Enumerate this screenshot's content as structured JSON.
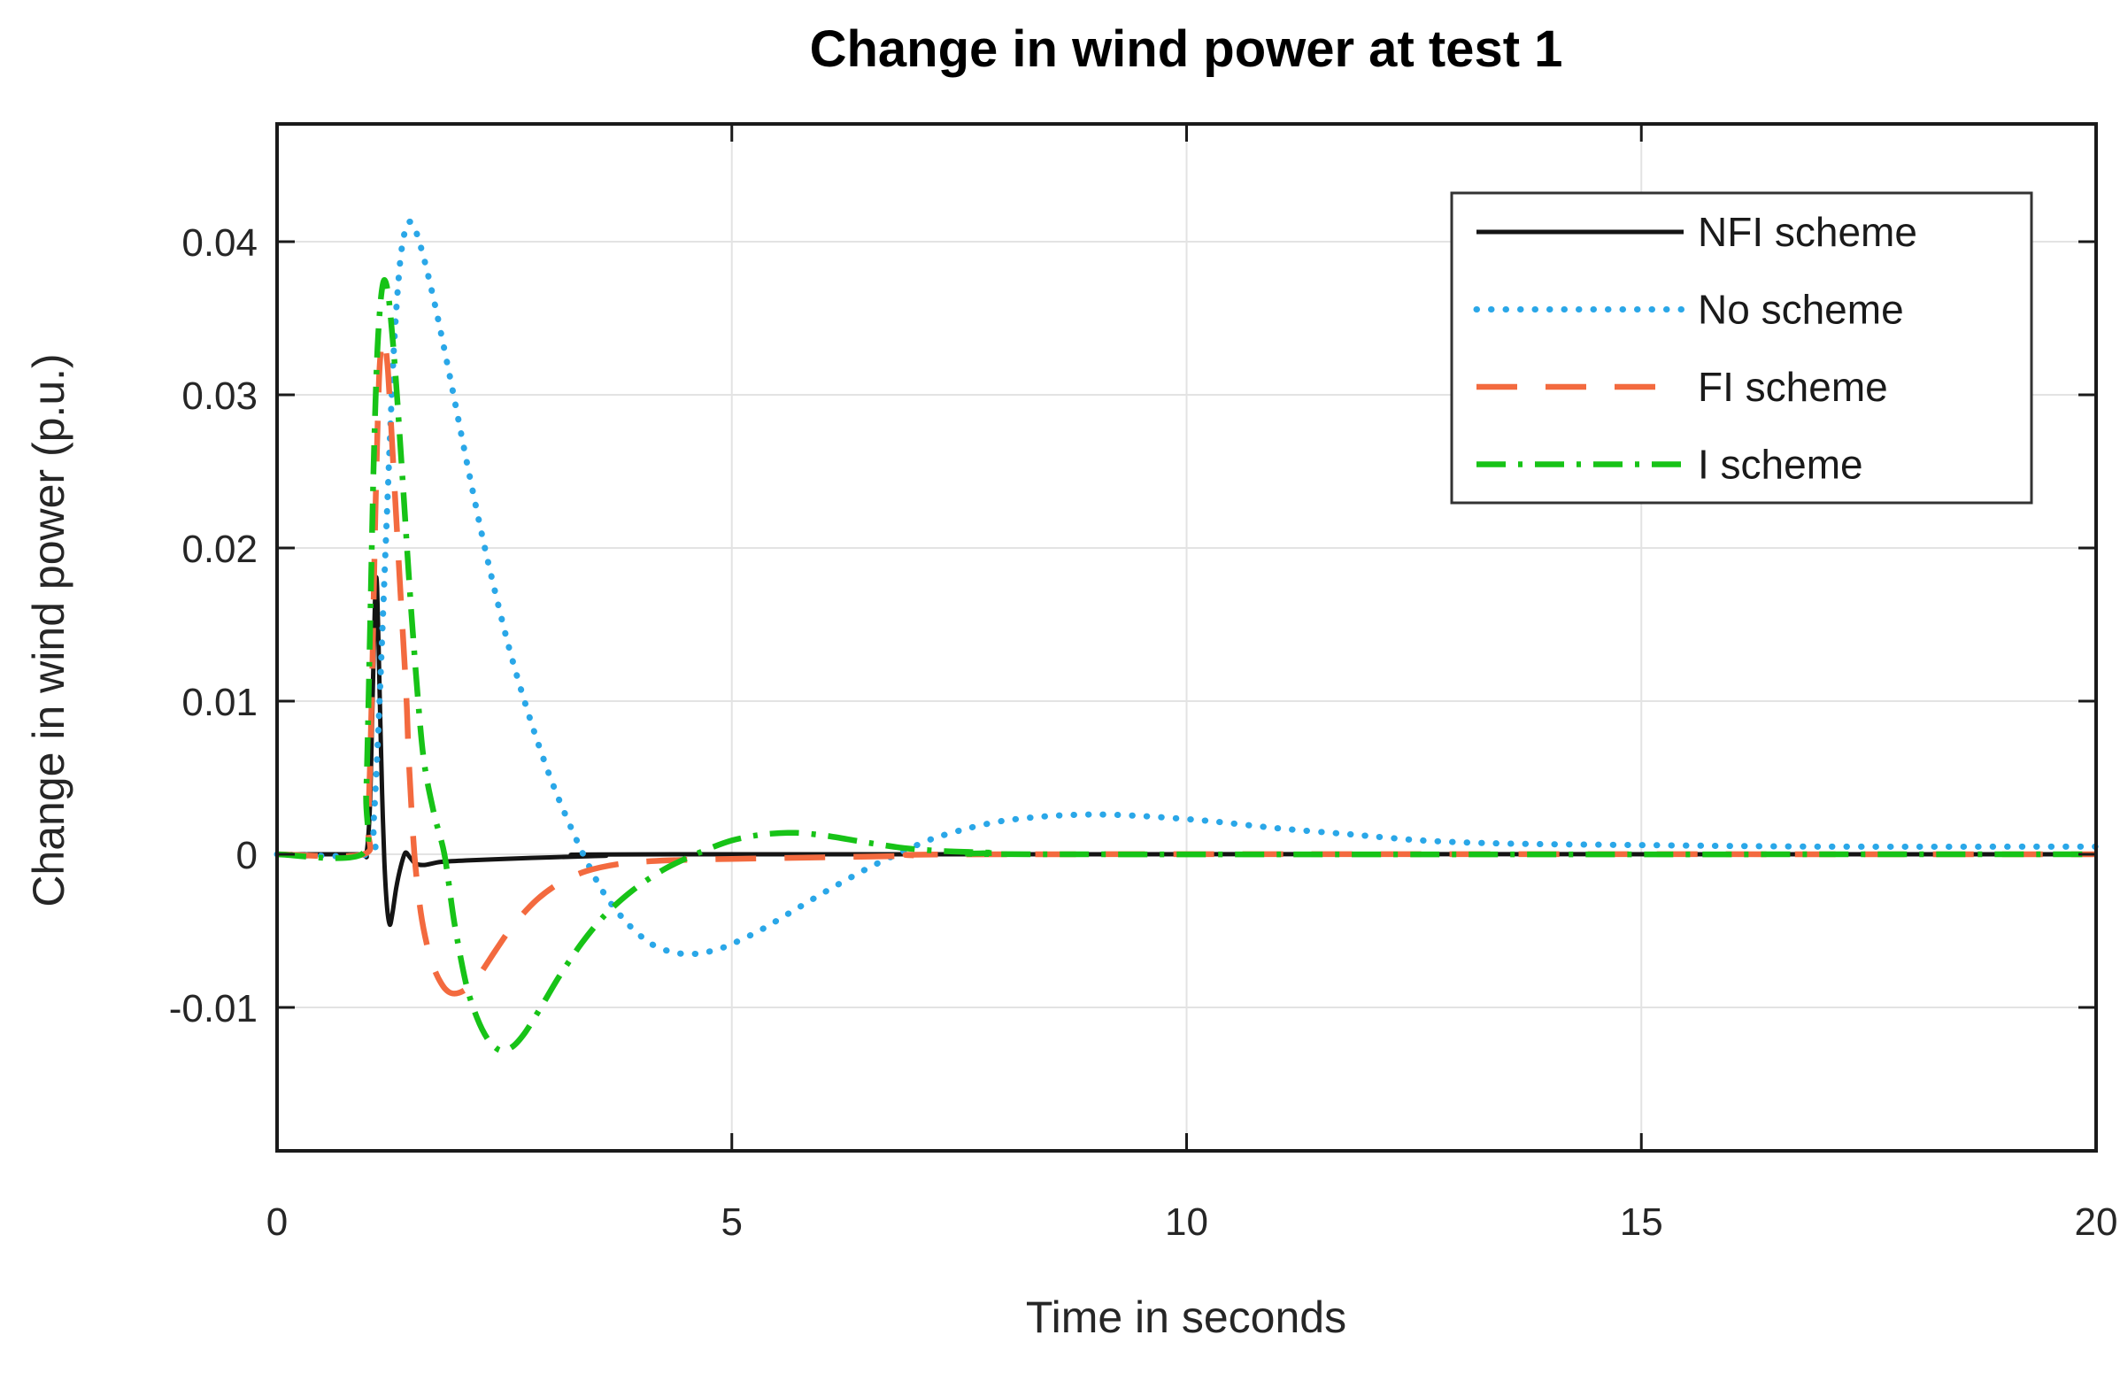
{
  "chart_data": {
    "type": "line",
    "title": "Change in wind power at test 1",
    "xlabel": "Time in seconds",
    "ylabel": "Change in wind power (p.u.)",
    "xlim": [
      0,
      20
    ],
    "ylim": [
      -0.0194,
      0.0477
    ],
    "xticks": [
      0,
      5,
      10,
      15,
      20
    ],
    "xtick_labels": [
      "0",
      "5",
      "10",
      "15",
      "20"
    ],
    "yticks": [
      -0.01,
      0,
      0.01,
      0.02,
      0.03,
      0.04
    ],
    "ytick_labels": [
      "-0.01",
      "0",
      "0.01",
      "0.02",
      "0.03",
      "0.04"
    ],
    "grid": true,
    "legend_position": "top-right",
    "colors": {
      "background": "#ffffff",
      "frame": "#1a1a1a",
      "grid": "#e3e3e3",
      "tick_label": "#262626",
      "title": "#000000"
    },
    "series": [
      {
        "name": "nfi-scheme",
        "label": "NFI scheme",
        "color": "#141414",
        "style": "solid",
        "width": 5,
        "points": [
          [
            0,
            0
          ],
          [
            0.9,
            0
          ],
          [
            0.98,
            0
          ],
          [
            1.02,
            0.003
          ],
          [
            1.05,
            0.01
          ],
          [
            1.08,
            0.0172
          ],
          [
            1.1,
            0.0174
          ],
          [
            1.13,
            0.01
          ],
          [
            1.155,
            0.004
          ],
          [
            1.18,
            -0.0005
          ],
          [
            1.21,
            -0.0035
          ],
          [
            1.24,
            -0.0046
          ],
          [
            1.27,
            -0.0038
          ],
          [
            1.31,
            -0.0022
          ],
          [
            1.36,
            -0.0008
          ],
          [
            1.41,
            0.0001
          ],
          [
            1.46,
            -0.0002
          ],
          [
            1.52,
            -0.0006
          ],
          [
            1.62,
            -0.0007
          ],
          [
            1.8,
            -0.0005
          ],
          [
            2.1,
            -0.0004
          ],
          [
            2.5,
            -0.0003
          ],
          [
            3.0,
            -0.0002
          ],
          [
            3.6,
            -0.0001
          ],
          [
            4.5,
            0
          ],
          [
            20,
            0
          ]
        ]
      },
      {
        "name": "no-scheme",
        "label": "No scheme",
        "color": "#2AA7E8",
        "style": "dotted",
        "width": 7,
        "points": [
          [
            0,
            0
          ],
          [
            1.0,
            0
          ],
          [
            1.06,
            0.002
          ],
          [
            1.12,
            0.009
          ],
          [
            1.2,
            0.021
          ],
          [
            1.28,
            0.0325
          ],
          [
            1.35,
            0.0385
          ],
          [
            1.41,
            0.0408
          ],
          [
            1.46,
            0.0413
          ],
          [
            1.52,
            0.0408
          ],
          [
            1.62,
            0.0388
          ],
          [
            1.75,
            0.0355
          ],
          [
            1.9,
            0.0312
          ],
          [
            2.1,
            0.0252
          ],
          [
            2.3,
            0.0196
          ],
          [
            2.55,
            0.0135
          ],
          [
            2.8,
            0.0085
          ],
          [
            3.05,
            0.0043
          ],
          [
            3.35,
            0.0002
          ],
          [
            3.6,
            -0.0026
          ],
          [
            3.85,
            -0.0045
          ],
          [
            4.1,
            -0.0058
          ],
          [
            4.35,
            -0.0064
          ],
          [
            4.6,
            -0.0065
          ],
          [
            4.9,
            -0.0061
          ],
          [
            5.3,
            -0.005
          ],
          [
            5.7,
            -0.0036
          ],
          [
            6.1,
            -0.0022
          ],
          [
            6.5,
            -0.0009
          ],
          [
            6.85,
            0.0001
          ],
          [
            7.2,
            0.001
          ],
          [
            7.6,
            0.0017
          ],
          [
            8.0,
            0.0022
          ],
          [
            8.5,
            0.0025
          ],
          [
            9.0,
            0.0026
          ],
          [
            9.5,
            0.0025
          ],
          [
            10.2,
            0.0022
          ],
          [
            11.0,
            0.0017
          ],
          [
            11.8,
            0.0013
          ],
          [
            12.6,
            0.0009
          ],
          [
            13.5,
            0.0007
          ],
          [
            15.0,
            0.0006
          ],
          [
            17.0,
            0.0005
          ],
          [
            20,
            0.0005
          ]
        ]
      },
      {
        "name": "fi-scheme",
        "label": "FI scheme",
        "color": "#F36A3F",
        "style": "dashed",
        "width": 6.5,
        "points": [
          [
            0,
            0
          ],
          [
            0.95,
            0
          ],
          [
            1.0,
            0.002
          ],
          [
            1.04,
            0.01
          ],
          [
            1.08,
            0.022
          ],
          [
            1.12,
            0.0308
          ],
          [
            1.15,
            0.0333
          ],
          [
            1.18,
            0.0335
          ],
          [
            1.22,
            0.0315
          ],
          [
            1.28,
            0.0252
          ],
          [
            1.35,
            0.0178
          ],
          [
            1.42,
            0.0105
          ],
          [
            1.45,
            0.006
          ],
          [
            1.51,
            0
          ],
          [
            1.58,
            -0.0038
          ],
          [
            1.66,
            -0.0062
          ],
          [
            1.75,
            -0.0078
          ],
          [
            1.85,
            -0.0088
          ],
          [
            1.95,
            -0.0091
          ],
          [
            2.08,
            -0.0088
          ],
          [
            2.22,
            -0.0079
          ],
          [
            2.4,
            -0.0063
          ],
          [
            2.6,
            -0.0046
          ],
          [
            2.85,
            -0.003
          ],
          [
            3.1,
            -0.0019
          ],
          [
            3.4,
            -0.0011
          ],
          [
            3.8,
            -0.0006
          ],
          [
            4.3,
            -0.0004
          ],
          [
            5.0,
            -0.0003
          ],
          [
            6.0,
            -0.0002
          ],
          [
            7.0,
            -0.0001
          ],
          [
            8.0,
            0
          ],
          [
            20,
            0
          ]
        ]
      },
      {
        "name": "i-scheme",
        "label": "I scheme",
        "color": "#17C317",
        "style": "dashdot",
        "width": 6.5,
        "points": [
          [
            0,
            0
          ],
          [
            0.93,
            0
          ],
          [
            0.98,
            0.004
          ],
          [
            1.02,
            0.014
          ],
          [
            1.06,
            0.025
          ],
          [
            1.1,
            0.0325
          ],
          [
            1.14,
            0.0362
          ],
          [
            1.18,
            0.0375
          ],
          [
            1.23,
            0.0362
          ],
          [
            1.3,
            0.0315
          ],
          [
            1.38,
            0.0245
          ],
          [
            1.48,
            0.0155
          ],
          [
            1.6,
            0.0068
          ],
          [
            1.72,
            0.0028
          ],
          [
            1.84,
            0
          ],
          [
            1.95,
            -0.0045
          ],
          [
            2.08,
            -0.0085
          ],
          [
            2.2,
            -0.0107
          ],
          [
            2.32,
            -0.0121
          ],
          [
            2.45,
            -0.0128
          ],
          [
            2.58,
            -0.0126
          ],
          [
            2.72,
            -0.0117
          ],
          [
            2.9,
            -0.01
          ],
          [
            3.1,
            -0.008
          ],
          [
            3.35,
            -0.0058
          ],
          [
            3.6,
            -0.004
          ],
          [
            3.9,
            -0.0024
          ],
          [
            4.25,
            -0.001
          ],
          [
            4.64,
            0.0001
          ],
          [
            5.0,
            0.0009
          ],
          [
            5.35,
            0.0013
          ],
          [
            5.7,
            0.0014
          ],
          [
            6.05,
            0.0012
          ],
          [
            6.45,
            0.0008
          ],
          [
            6.9,
            0.0004
          ],
          [
            7.35,
            0.0002
          ],
          [
            7.9,
            0.0001
          ],
          [
            8.5,
            0
          ],
          [
            20,
            0
          ]
        ]
      }
    ]
  }
}
